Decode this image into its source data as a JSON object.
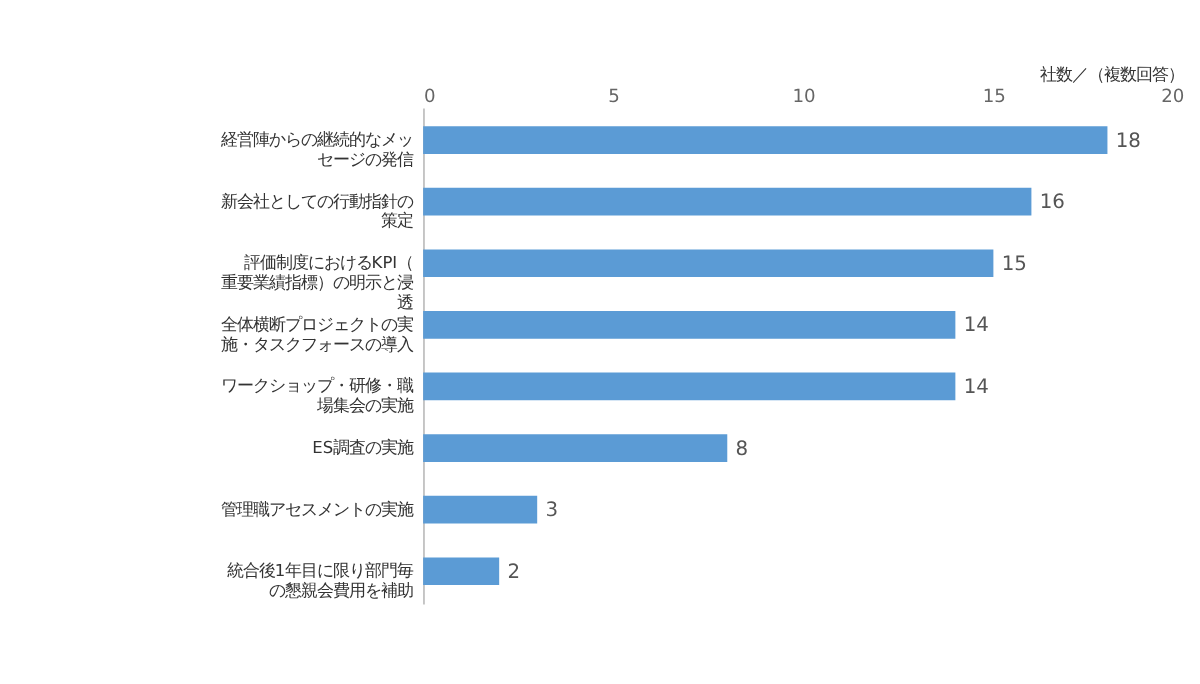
{
  "chart_data": {
    "type": "bar",
    "orientation": "horizontal",
    "xlabel": "社数／（複数回答）",
    "categories": [
      "経営陣からの継続的なメッセージの発信",
      "新会社としての行動指針の策定",
      "評価制度におけるKPI（重要業績指標）の明示と浸透",
      "全体横断プロジェクトの実施・タスクフォースの導入",
      "ワークショップ・研修・職場集会の実施",
      "ES調査の実施",
      "管理職アセスメントの実施",
      "統合後1年目に限り部門毎の懇親会費用を補助"
    ],
    "values": [
      18,
      16,
      15,
      14,
      14,
      8,
      3,
      2
    ],
    "color": "#5b9bd5",
    "xlim": [
      0,
      20
    ],
    "xticks": [
      0,
      5,
      10,
      15,
      20
    ],
    "grid": false,
    "data_labels": true
  }
}
